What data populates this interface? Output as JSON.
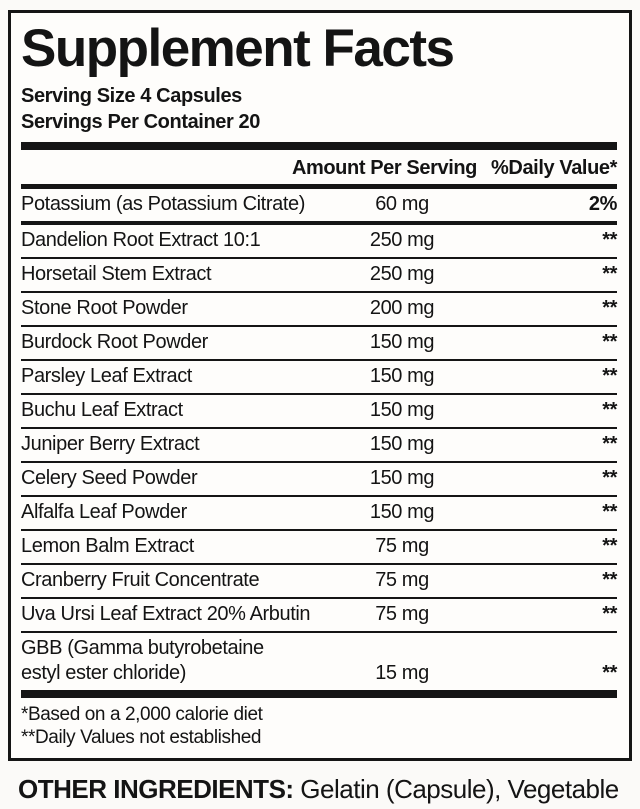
{
  "title": "Supplement Facts",
  "serving": {
    "size": "Serving Size 4 Capsules",
    "per_container": "Servings Per Container 20"
  },
  "header": {
    "amount": "Amount Per Serving",
    "dv": "%Daily Value*"
  },
  "rows": [
    {
      "name": "Potassium (as Potassium Citrate)",
      "amount": "60 mg",
      "dv": "2%"
    },
    {
      "name": "Dandelion Root Extract 10:1",
      "amount": "250 mg",
      "dv": "**"
    },
    {
      "name": "Horsetail Stem Extract",
      "amount": "250 mg",
      "dv": "**"
    },
    {
      "name": "Stone Root Powder",
      "amount": "200 mg",
      "dv": "**"
    },
    {
      "name": "Burdock Root Powder",
      "amount": "150 mg",
      "dv": "**"
    },
    {
      "name": "Parsley Leaf Extract",
      "amount": "150 mg",
      "dv": "**"
    },
    {
      "name": "Buchu Leaf Extract",
      "amount": "150 mg",
      "dv": "**"
    },
    {
      "name": "Juniper Berry Extract",
      "amount": "150 mg",
      "dv": "**"
    },
    {
      "name": "Celery Seed Powder",
      "amount": "150 mg",
      "dv": "**"
    },
    {
      "name": "Alfalfa Leaf Powder",
      "amount": "150 mg",
      "dv": "**"
    },
    {
      "name": "Lemon Balm Extract",
      "amount": "75 mg",
      "dv": "**"
    },
    {
      "name": "Cranberry Fruit Concentrate",
      "amount": "75 mg",
      "dv": "**"
    },
    {
      "name": "Uva Ursi Leaf Extract 20% Arbutin",
      "amount": "75 mg",
      "dv": "**"
    },
    {
      "name": "GBB (Gamma butyrobetaine estyl ester chloride)",
      "name_lines": [
        "GBB (Gamma butyrobetaine",
        "estyl ester chloride)"
      ],
      "amount": "15 mg",
      "dv": "**"
    }
  ],
  "footnotes": [
    "*Based on a 2,000 calorie diet",
    "**Daily Values not established"
  ],
  "other_ingredients": {
    "label": "OTHER INGREDIENTS:",
    "text": " Gelatin (Capsule), Vegetable Cellulose, Magnesium Stearate, and Silicon dioxide."
  },
  "colors": {
    "text": "#141414",
    "border": "#151515",
    "panel_background": "#fefdfb",
    "page_background": "#fbfaf8"
  }
}
